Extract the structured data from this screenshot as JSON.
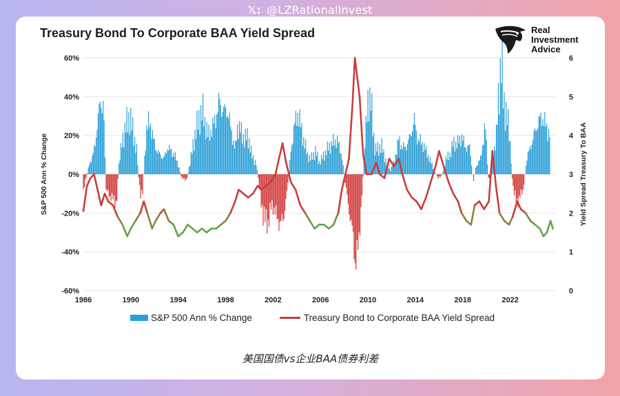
{
  "header": {
    "handle_icon": "x-logo-icon",
    "handle": "@LZRationalInvest"
  },
  "chart_data": {
    "type": "bar",
    "title": "Treasury Bond To Corporate BAA Yield Spread",
    "x_ticks": [
      "1986",
      "1990",
      "1994",
      "1998",
      "2002",
      "2006",
      "2010",
      "2014",
      "2018",
      "2022"
    ],
    "xlim": [
      1986,
      2025.8
    ],
    "ylabel_left": "S&P 500 Ann % Change",
    "ylabel_right": "Yield Spread Treasury To BAA",
    "ylim_left": [
      -60,
      60
    ],
    "ylim_right": [
      0,
      6
    ],
    "left_ticks": [
      "60%",
      "40%",
      "20%",
      "0%",
      "-20%",
      "-40%",
      "-60%"
    ],
    "right_ticks": [
      "6",
      "5",
      "4",
      "3",
      "2",
      "1",
      "0"
    ],
    "grid": true,
    "legend_position": "bottom",
    "series": [
      {
        "name": "S&P 500 Ann % Change",
        "kind": "bar",
        "axis": "left",
        "color": "#2b9fd6",
        "negative_color": "#d23a3a",
        "points": [
          [
            1986,
            -8
          ],
          [
            1986.5,
            5
          ],
          [
            1986.8,
            10
          ],
          [
            1987,
            15
          ],
          [
            1987.2,
            28
          ],
          [
            1987.4,
            35
          ],
          [
            1987.7,
            38
          ],
          [
            1987.9,
            -8
          ],
          [
            1988.1,
            -10
          ],
          [
            1988.4,
            -12
          ],
          [
            1988.8,
            -15
          ],
          [
            1989.0,
            5
          ],
          [
            1989.3,
            18
          ],
          [
            1989.6,
            25
          ],
          [
            1989.9,
            30
          ],
          [
            1990.2,
            22
          ],
          [
            1990.5,
            12
          ],
          [
            1990.8,
            -12
          ],
          [
            1991.0,
            -8
          ],
          [
            1991.3,
            22
          ],
          [
            1991.6,
            28
          ],
          [
            1991.9,
            18
          ],
          [
            1992.2,
            12
          ],
          [
            1992.5,
            10
          ],
          [
            1992.8,
            8
          ],
          [
            1993.1,
            14
          ],
          [
            1993.4,
            12
          ],
          [
            1993.7,
            10
          ],
          [
            1994.0,
            5
          ],
          [
            1994.3,
            -2
          ],
          [
            1994.7,
            -3
          ],
          [
            1995.0,
            6
          ],
          [
            1995.4,
            20
          ],
          [
            1995.8,
            30
          ],
          [
            1996.1,
            32
          ],
          [
            1996.5,
            20
          ],
          [
            1996.9,
            24
          ],
          [
            1997.2,
            30
          ],
          [
            1997.5,
            38
          ],
          [
            1997.8,
            32
          ],
          [
            1998.1,
            34
          ],
          [
            1998.5,
            22
          ],
          [
            1998.8,
            12
          ],
          [
            1999.0,
            25
          ],
          [
            1999.3,
            22
          ],
          [
            1999.6,
            18
          ],
          [
            1999.9,
            20
          ],
          [
            2000.2,
            10
          ],
          [
            2000.6,
            5
          ],
          [
            2000.9,
            -10
          ],
          [
            2001.2,
            -22
          ],
          [
            2001.6,
            -25
          ],
          [
            2001.9,
            -15
          ],
          [
            2002.2,
            -20
          ],
          [
            2002.6,
            -26
          ],
          [
            2002.9,
            -22
          ],
          [
            2003.2,
            -8
          ],
          [
            2003.5,
            12
          ],
          [
            2003.8,
            25
          ],
          [
            2004.1,
            32
          ],
          [
            2004.5,
            20
          ],
          [
            2004.9,
            10
          ],
          [
            2005.2,
            8
          ],
          [
            2005.6,
            12
          ],
          [
            2005.9,
            6
          ],
          [
            2006.3,
            10
          ],
          [
            2006.7,
            14
          ],
          [
            2007.0,
            16
          ],
          [
            2007.4,
            18
          ],
          [
            2007.8,
            10
          ],
          [
            2008.1,
            -5
          ],
          [
            2008.4,
            -18
          ],
          [
            2008.7,
            -30
          ],
          [
            2008.95,
            -46
          ],
          [
            2009.2,
            -38
          ],
          [
            2009.5,
            -10
          ],
          [
            2009.8,
            20
          ],
          [
            2010.0,
            40
          ],
          [
            2010.3,
            35
          ],
          [
            2010.6,
            12
          ],
          [
            2010.9,
            14
          ],
          [
            2011.2,
            14
          ],
          [
            2011.6,
            5
          ],
          [
            2011.9,
            2
          ],
          [
            2012.2,
            6
          ],
          [
            2012.6,
            18
          ],
          [
            2012.9,
            14
          ],
          [
            2013.2,
            14
          ],
          [
            2013.6,
            20
          ],
          [
            2013.9,
            28
          ],
          [
            2014.2,
            18
          ],
          [
            2014.6,
            16
          ],
          [
            2014.9,
            12
          ],
          [
            2015.2,
            8
          ],
          [
            2015.6,
            2
          ],
          [
            2015.9,
            -2
          ],
          [
            2016.2,
            -1
          ],
          [
            2016.6,
            8
          ],
          [
            2016.9,
            10
          ],
          [
            2017.2,
            16
          ],
          [
            2017.6,
            16
          ],
          [
            2017.9,
            20
          ],
          [
            2018.2,
            14
          ],
          [
            2018.6,
            14
          ],
          [
            2018.9,
            -4
          ],
          [
            2019.1,
            4
          ],
          [
            2019.5,
            8
          ],
          [
            2019.9,
            25
          ],
          [
            2020.2,
            -5
          ],
          [
            2020.5,
            10
          ],
          [
            2020.8,
            15
          ],
          [
            2021.0,
            42
          ],
          [
            2021.3,
            55
          ],
          [
            2021.6,
            30
          ],
          [
            2021.9,
            26
          ],
          [
            2022.2,
            -5
          ],
          [
            2022.5,
            -15
          ],
          [
            2022.8,
            -12
          ],
          [
            2023.1,
            -8
          ],
          [
            2023.4,
            8
          ],
          [
            2023.7,
            14
          ],
          [
            2024.0,
            20
          ],
          [
            2024.3,
            26
          ],
          [
            2024.7,
            30
          ],
          [
            2025.0,
            25
          ],
          [
            2025.4,
            20
          ]
        ]
      },
      {
        "name": "Treasury Bond to Corporate BAA Yield Spread",
        "kind": "line",
        "axis": "right",
        "color": "#c93c3c",
        "low_color": "#5da64a",
        "points": [
          [
            1986,
            2.05
          ],
          [
            1986.3,
            2.7
          ],
          [
            1986.6,
            2.9
          ],
          [
            1986.9,
            3.0
          ],
          [
            1987.2,
            2.6
          ],
          [
            1987.5,
            2.2
          ],
          [
            1987.8,
            2.5
          ],
          [
            1988.1,
            2.3
          ],
          [
            1988.5,
            2.2
          ],
          [
            1988.9,
            1.9
          ],
          [
            1989.3,
            1.7
          ],
          [
            1989.7,
            1.4
          ],
          [
            1990.0,
            1.6
          ],
          [
            1990.4,
            1.8
          ],
          [
            1990.8,
            2.0
          ],
          [
            1991.1,
            2.3
          ],
          [
            1991.4,
            2.0
          ],
          [
            1991.8,
            1.6
          ],
          [
            1992.1,
            1.8
          ],
          [
            1992.5,
            2.0
          ],
          [
            1992.8,
            2.1
          ],
          [
            1993.2,
            1.8
          ],
          [
            1993.6,
            1.7
          ],
          [
            1994.0,
            1.4
          ],
          [
            1994.4,
            1.5
          ],
          [
            1994.8,
            1.7
          ],
          [
            1995.2,
            1.6
          ],
          [
            1995.6,
            1.5
          ],
          [
            1996.0,
            1.6
          ],
          [
            1996.4,
            1.5
          ],
          [
            1996.8,
            1.6
          ],
          [
            1997.2,
            1.6
          ],
          [
            1997.6,
            1.7
          ],
          [
            1998.0,
            1.8
          ],
          [
            1998.4,
            2.0
          ],
          [
            1998.8,
            2.3
          ],
          [
            1999.1,
            2.6
          ],
          [
            1999.5,
            2.5
          ],
          [
            1999.9,
            2.4
          ],
          [
            2000.3,
            2.5
          ],
          [
            2000.7,
            2.7
          ],
          [
            2001.0,
            2.6
          ],
          [
            2001.4,
            2.7
          ],
          [
            2001.8,
            2.8
          ],
          [
            2002.2,
            3.0
          ],
          [
            2002.5,
            3.4
          ],
          [
            2002.8,
            3.8
          ],
          [
            2003.1,
            3.3
          ],
          [
            2003.5,
            2.8
          ],
          [
            2003.9,
            2.6
          ],
          [
            2004.3,
            2.2
          ],
          [
            2004.7,
            2.0
          ],
          [
            2005.1,
            1.8
          ],
          [
            2005.5,
            1.6
          ],
          [
            2005.9,
            1.7
          ],
          [
            2006.3,
            1.7
          ],
          [
            2006.7,
            1.6
          ],
          [
            2007.1,
            1.7
          ],
          [
            2007.5,
            2.0
          ],
          [
            2007.8,
            2.6
          ],
          [
            2008.1,
            3.0
          ],
          [
            2008.4,
            3.4
          ],
          [
            2008.7,
            4.8
          ],
          [
            2008.9,
            6.0
          ],
          [
            2009.1,
            5.5
          ],
          [
            2009.3,
            5.0
          ],
          [
            2009.6,
            3.5
          ],
          [
            2009.9,
            3.0
          ],
          [
            2010.3,
            3.0
          ],
          [
            2010.7,
            3.3
          ],
          [
            2011.0,
            3.0
          ],
          [
            2011.4,
            2.9
          ],
          [
            2011.8,
            3.4
          ],
          [
            2012.2,
            3.2
          ],
          [
            2012.6,
            3.4
          ],
          [
            2012.9,
            3.0
          ],
          [
            2013.3,
            2.6
          ],
          [
            2013.7,
            2.4
          ],
          [
            2014.1,
            2.3
          ],
          [
            2014.5,
            2.1
          ],
          [
            2014.9,
            2.4
          ],
          [
            2015.3,
            2.8
          ],
          [
            2015.7,
            3.2
          ],
          [
            2016.0,
            3.6
          ],
          [
            2016.4,
            3.2
          ],
          [
            2016.8,
            2.8
          ],
          [
            2017.2,
            2.5
          ],
          [
            2017.6,
            2.3
          ],
          [
            2017.9,
            2.0
          ],
          [
            2018.3,
            1.8
          ],
          [
            2018.7,
            1.7
          ],
          [
            2019.0,
            2.2
          ],
          [
            2019.4,
            2.3
          ],
          [
            2019.8,
            2.1
          ],
          [
            2020.2,
            2.3
          ],
          [
            2020.5,
            3.6
          ],
          [
            2020.8,
            2.7
          ],
          [
            2021.1,
            2.0
          ],
          [
            2021.5,
            1.8
          ],
          [
            2021.9,
            1.7
          ],
          [
            2022.2,
            1.9
          ],
          [
            2022.6,
            2.3
          ],
          [
            2022.9,
            2.1
          ],
          [
            2023.3,
            2.0
          ],
          [
            2023.7,
            1.8
          ],
          [
            2024.1,
            1.7
          ],
          [
            2024.5,
            1.6
          ],
          [
            2024.8,
            1.4
          ],
          [
            2025.1,
            1.5
          ],
          [
            2025.4,
            1.8
          ],
          [
            2025.6,
            1.6
          ]
        ]
      }
    ]
  },
  "brand": {
    "name": "Real Investment Advice",
    "line1": "Real",
    "line2": "Investment",
    "line3": "Advice",
    "icon": "eagle-logo-icon"
  },
  "caption": "美国国债vs企业BAA债券利差"
}
